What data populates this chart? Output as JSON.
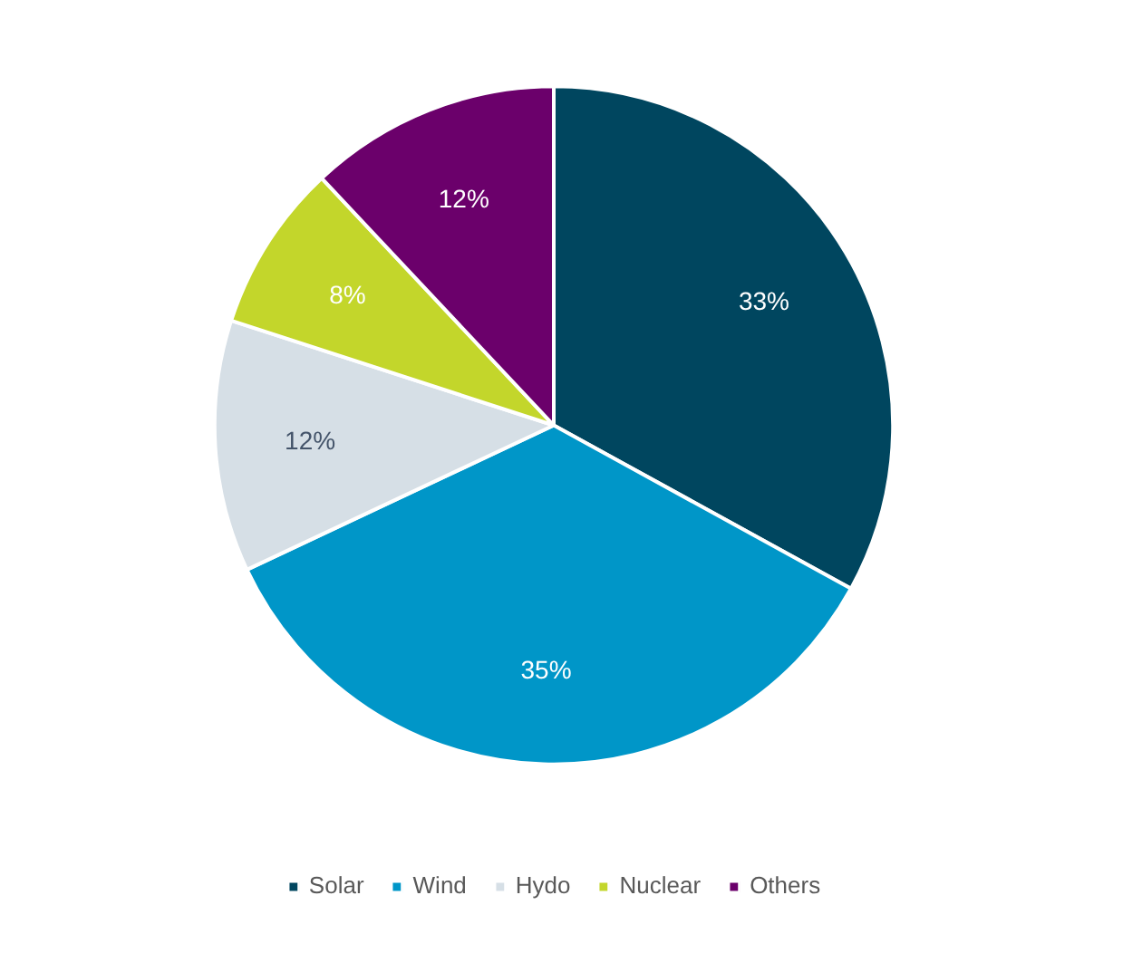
{
  "chart_data": {
    "type": "pie",
    "categories": [
      "Solar",
      "Wind",
      "Hydo",
      "Nuclear",
      "Others"
    ],
    "values": [
      33,
      35,
      12,
      8,
      12
    ],
    "colors": [
      "#00465f",
      "#0096c8",
      "#d6dfe6",
      "#c3d62b",
      "#6b006b"
    ],
    "value_labels": [
      "33%",
      "35%",
      "12%",
      "8%",
      "12%"
    ],
    "legend": "bottom"
  }
}
